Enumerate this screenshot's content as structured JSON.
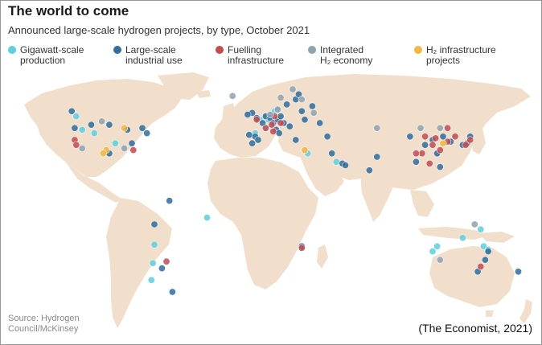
{
  "title": "The world to come",
  "subtitle": "Announced large-scale hydrogen projects, by type, October 2021",
  "legend": [
    {
      "key": "gigawatt",
      "line1": "Gigawatt-scale",
      "line2": "production",
      "color": "#5dd0df"
    },
    {
      "key": "industrial",
      "line1": "Large-scale",
      "line2": "industrial use",
      "color": "#2f6e9e"
    },
    {
      "key": "fuelling",
      "line1": "Fuelling",
      "line2": "infrastructure",
      "color": "#c64b52"
    },
    {
      "key": "integrated",
      "line1": "Integrated",
      "line2": "H₂ economy",
      "color": "#8fa3b0"
    },
    {
      "key": "infrastructure",
      "line1": "H₂ infrastructure",
      "line2": "projects",
      "color": "#f4b73f"
    }
  ],
  "source_line1": "Source: Hydrogen",
  "source_line2": "Council/McKinsey",
  "credit": "(The Economist, 2021)",
  "colors": {
    "land": "#f1dfcb",
    "ocean": "#ffffff"
  },
  "projects": {
    "gigawatt": [
      [
        -122,
        52
      ],
      [
        -118,
        44
      ],
      [
        -110,
        42
      ],
      [
        -96,
        36
      ],
      [
        -3,
        42
      ],
      [
        5,
        52
      ],
      [
        8,
        53
      ],
      [
        10,
        55
      ],
      [
        12,
        56
      ],
      [
        6,
        50
      ],
      [
        4,
        45
      ],
      [
        0,
        50
      ],
      [
        32,
        30
      ],
      [
        51,
        25
      ],
      [
        135,
        -20
      ],
      [
        147,
        -15
      ],
      [
        149,
        -25
      ],
      [
        118,
        -25
      ],
      [
        115,
        -28
      ],
      [
        152,
        -27
      ],
      [
        -70,
        -24
      ],
      [
        -71,
        -35
      ],
      [
        -72,
        -45
      ],
      [
        -35,
        -8
      ]
    ],
    "industrial": [
      [
        -125,
        55
      ],
      [
        -123,
        45
      ],
      [
        -112,
        47
      ],
      [
        -100,
        47
      ],
      [
        -88,
        44
      ],
      [
        -78,
        45
      ],
      [
        -75,
        42
      ],
      [
        -85,
        36
      ],
      [
        -100,
        30
      ],
      [
        -5,
        54
      ],
      [
        -8,
        53
      ],
      [
        -2,
        51
      ],
      [
        2,
        48
      ],
      [
        4,
        52
      ],
      [
        7,
        51
      ],
      [
        9,
        48
      ],
      [
        12,
        50
      ],
      [
        14,
        52
      ],
      [
        16,
        48
      ],
      [
        18,
        59
      ],
      [
        24,
        62
      ],
      [
        26,
        65
      ],
      [
        28,
        55
      ],
      [
        30,
        50
      ],
      [
        20,
        46
      ],
      [
        -7,
        41
      ],
      [
        -3,
        40
      ],
      [
        -1,
        38
      ],
      [
        11,
        44
      ],
      [
        13,
        42
      ],
      [
        24,
        38
      ],
      [
        35,
        58
      ],
      [
        40,
        48
      ],
      [
        45,
        40
      ],
      [
        48,
        30
      ],
      [
        55,
        24
      ],
      [
        57,
        23
      ],
      [
        73,
        20
      ],
      [
        78,
        28
      ],
      [
        100,
        40
      ],
      [
        110,
        35
      ],
      [
        115,
        38
      ],
      [
        118,
        30
      ],
      [
        122,
        40
      ],
      [
        127,
        37
      ],
      [
        135,
        35
      ],
      [
        138,
        36
      ],
      [
        140,
        40
      ],
      [
        104,
        25
      ],
      [
        120,
        22
      ],
      [
        152,
        -28
      ],
      [
        -60,
        2
      ],
      [
        -70,
        -12
      ],
      [
        -65,
        -38
      ],
      [
        28,
        -25
      ],
      [
        150,
        -33
      ],
      [
        -58,
        -52
      ],
      [
        145,
        -40
      ],
      [
        172,
        -40
      ],
      [
        -5,
        36
      ]
    ],
    "fuelling": [
      [
        -123,
        38
      ],
      [
        -122,
        35
      ],
      [
        -84,
        32
      ],
      [
        4,
        45
      ],
      [
        8,
        47
      ],
      [
        10,
        52
      ],
      [
        14,
        48
      ],
      [
        9,
        43
      ],
      [
        -2,
        50
      ],
      [
        110,
        40
      ],
      [
        115,
        35
      ],
      [
        120,
        32
      ],
      [
        125,
        45
      ],
      [
        130,
        40
      ],
      [
        108,
        30
      ],
      [
        104,
        30
      ],
      [
        113,
        24
      ],
      [
        117,
        39
      ],
      [
        125,
        37
      ],
      [
        137,
        35
      ],
      [
        140,
        38
      ],
      [
        28,
        -26
      ],
      [
        -62,
        -34
      ],
      [
        147,
        -37
      ]
    ],
    "integrated": [
      [
        -105,
        49
      ],
      [
        -90,
        33
      ],
      [
        -118,
        33
      ],
      [
        14,
        63
      ],
      [
        22,
        68
      ],
      [
        28,
        62
      ],
      [
        -18,
        64
      ],
      [
        36,
        54
      ],
      [
        78,
        45
      ],
      [
        107,
        45
      ],
      [
        120,
        45
      ],
      [
        143,
        -12
      ],
      [
        120,
        -33
      ],
      [
        12,
        56
      ],
      [
        7,
        53
      ]
    ],
    "infrastructure": [
      [
        -90,
        45
      ],
      [
        -102,
        32
      ],
      [
        -104,
        30
      ],
      [
        30,
        32
      ],
      [
        122,
        36
      ]
    ]
  }
}
